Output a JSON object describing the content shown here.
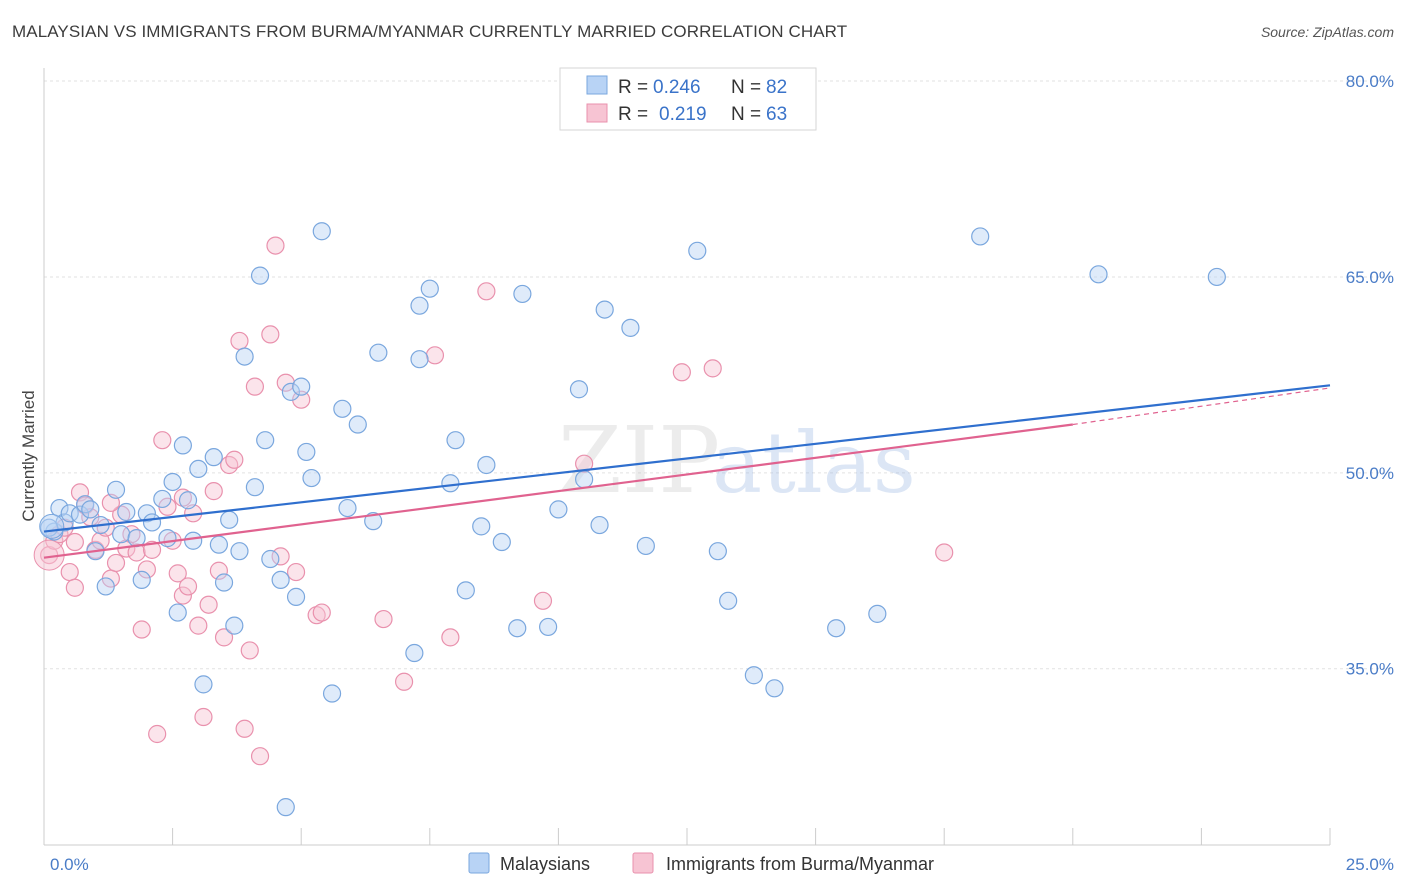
{
  "header": {
    "title": "MALAYSIAN VS IMMIGRANTS FROM BURMA/MYANMAR CURRENTLY MARRIED CORRELATION CHART",
    "source": "Source: ZipAtlas.com"
  },
  "watermark": {
    "zip": "ZIP",
    "atlas": "atlas"
  },
  "colors": {
    "blue_fill": "#b8d3f5",
    "blue_stroke": "#7aa7de",
    "blue_line": "#2f6fce",
    "pink_fill": "#f7c4d3",
    "pink_stroke": "#e991ad",
    "pink_line": "#e0628f",
    "tick_text": "#4a7cc7",
    "grid": "#e2e2e2"
  },
  "legend": {
    "rows": [
      {
        "r_label": "R =",
        "r_value": "0.246",
        "n_label": "N =",
        "n_value": "82"
      },
      {
        "r_label": "R =",
        "r_value": "0.219",
        "n_label": "N =",
        "n_value": "63"
      }
    ]
  },
  "bottom_legend": [
    "Malaysians",
    "Immigrants from Burma/Myanmar"
  ],
  "chart_data": {
    "type": "scatter",
    "title": "MALAYSIAN VS IMMIGRANTS FROM BURMA/MYANMAR CURRENTLY MARRIED CORRELATION CHART",
    "xlabel": "",
    "ylabel": "Currently Married",
    "xlim": [
      0,
      25
    ],
    "ylim": [
      21.5,
      81
    ],
    "y_ticks": [
      35,
      50,
      65,
      80
    ],
    "y_tick_labels": [
      "35.0%",
      "50.0%",
      "65.0%",
      "80.0%"
    ],
    "x_tick_labels": [
      "0.0%",
      "25.0%"
    ],
    "grid": true,
    "legend_position": "top-center",
    "series": [
      {
        "name": "Malaysians",
        "color": "#b8d3f5",
        "trend": {
          "x": [
            0,
            25
          ],
          "y": [
            45.5,
            56.7
          ]
        },
        "points": [
          [
            0.2,
            45.5
          ],
          [
            0.3,
            47.3
          ],
          [
            0.4,
            46.2
          ],
          [
            0.5,
            46.9
          ],
          [
            0.7,
            46.8
          ],
          [
            0.8,
            47.6
          ],
          [
            0.9,
            47.2
          ],
          [
            1.0,
            44.0
          ],
          [
            1.1,
            46.0
          ],
          [
            1.2,
            41.3
          ],
          [
            1.4,
            48.7
          ],
          [
            1.5,
            45.3
          ],
          [
            1.6,
            47.0
          ],
          [
            1.8,
            45.0
          ],
          [
            1.9,
            41.8
          ],
          [
            2.0,
            46.9
          ],
          [
            2.1,
            46.2
          ],
          [
            2.3,
            48.0
          ],
          [
            2.4,
            45.0
          ],
          [
            2.5,
            49.3
          ],
          [
            2.6,
            39.3
          ],
          [
            2.7,
            52.1
          ],
          [
            2.8,
            47.9
          ],
          [
            2.9,
            44.8
          ],
          [
            3.0,
            50.3
          ],
          [
            3.1,
            33.8
          ],
          [
            3.3,
            51.2
          ],
          [
            3.4,
            44.5
          ],
          [
            3.5,
            41.6
          ],
          [
            3.6,
            46.4
          ],
          [
            3.7,
            38.3
          ],
          [
            3.8,
            44.0
          ],
          [
            3.9,
            58.9
          ],
          [
            4.1,
            48.9
          ],
          [
            4.2,
            65.1
          ],
          [
            4.3,
            52.5
          ],
          [
            4.4,
            43.4
          ],
          [
            4.6,
            41.8
          ],
          [
            4.7,
            24.4
          ],
          [
            4.8,
            56.2
          ],
          [
            4.9,
            40.5
          ],
          [
            5.0,
            56.6
          ],
          [
            5.1,
            51.6
          ],
          [
            5.2,
            49.6
          ],
          [
            5.4,
            68.5
          ],
          [
            5.6,
            33.1
          ],
          [
            5.8,
            54.9
          ],
          [
            5.9,
            47.3
          ],
          [
            6.1,
            53.7
          ],
          [
            6.4,
            46.3
          ],
          [
            6.5,
            59.2
          ],
          [
            7.2,
            36.2
          ],
          [
            7.3,
            62.8
          ],
          [
            7.3,
            58.7
          ],
          [
            7.5,
            64.1
          ],
          [
            7.9,
            49.2
          ],
          [
            8.0,
            52.5
          ],
          [
            8.2,
            41.0
          ],
          [
            8.5,
            45.9
          ],
          [
            8.6,
            50.6
          ],
          [
            8.9,
            44.7
          ],
          [
            9.2,
            38.1
          ],
          [
            9.3,
            63.7
          ],
          [
            9.8,
            38.2
          ],
          [
            10.0,
            47.2
          ],
          [
            10.4,
            56.4
          ],
          [
            10.5,
            49.5
          ],
          [
            10.8,
            46.0
          ],
          [
            10.9,
            62.5
          ],
          [
            11.4,
            61.1
          ],
          [
            11.7,
            44.4
          ],
          [
            12.7,
            67.0
          ],
          [
            13.1,
            44.0
          ],
          [
            13.3,
            40.2
          ],
          [
            13.8,
            34.5
          ],
          [
            14.2,
            33.5
          ],
          [
            15.4,
            38.1
          ],
          [
            16.2,
            39.2
          ],
          [
            18.2,
            68.1
          ],
          [
            20.5,
            65.2
          ],
          [
            22.8,
            65.0
          ],
          [
            0.1,
            45.8
          ]
        ]
      },
      {
        "name": "Immigrants from Burma/Myanmar",
        "color": "#f7c4d3",
        "trend": {
          "x": [
            0,
            20
          ],
          "y": [
            43.5,
            53.7
          ]
        },
        "trend_dashed": {
          "x": [
            20,
            25
          ],
          "y": [
            53.7,
            56.5
          ]
        },
        "points": [
          [
            0.1,
            43.7
          ],
          [
            0.2,
            44.8
          ],
          [
            0.3,
            45.3
          ],
          [
            0.4,
            45.8
          ],
          [
            0.5,
            42.4
          ],
          [
            0.6,
            41.2
          ],
          [
            0.7,
            48.5
          ],
          [
            0.8,
            47.5
          ],
          [
            0.9,
            46.6
          ],
          [
            1.0,
            44.1
          ],
          [
            1.1,
            44.8
          ],
          [
            1.2,
            45.8
          ],
          [
            1.3,
            41.9
          ],
          [
            1.4,
            43.1
          ],
          [
            1.5,
            46.8
          ],
          [
            1.6,
            44.2
          ],
          [
            1.7,
            45.3
          ],
          [
            1.8,
            43.9
          ],
          [
            1.9,
            38.0
          ],
          [
            2.0,
            42.6
          ],
          [
            2.1,
            44.1
          ],
          [
            2.2,
            30.0
          ],
          [
            2.3,
            52.5
          ],
          [
            2.4,
            47.4
          ],
          [
            2.5,
            44.8
          ],
          [
            2.6,
            42.3
          ],
          [
            2.7,
            40.6
          ],
          [
            2.8,
            41.3
          ],
          [
            2.9,
            46.9
          ],
          [
            3.0,
            38.3
          ],
          [
            3.1,
            31.3
          ],
          [
            3.2,
            39.9
          ],
          [
            3.3,
            48.6
          ],
          [
            3.4,
            42.5
          ],
          [
            3.5,
            37.4
          ],
          [
            3.6,
            50.6
          ],
          [
            3.7,
            51.0
          ],
          [
            3.8,
            60.1
          ],
          [
            3.9,
            30.4
          ],
          [
            4.0,
            36.4
          ],
          [
            4.1,
            56.6
          ],
          [
            4.2,
            28.3
          ],
          [
            4.4,
            60.6
          ],
          [
            4.5,
            67.4
          ],
          [
            4.6,
            43.6
          ],
          [
            4.7,
            56.9
          ],
          [
            4.9,
            42.4
          ],
          [
            5.0,
            55.6
          ],
          [
            5.3,
            39.1
          ],
          [
            5.4,
            39.3
          ],
          [
            6.6,
            38.8
          ],
          [
            7.0,
            34.0
          ],
          [
            7.6,
            59.0
          ],
          [
            7.9,
            37.4
          ],
          [
            8.6,
            63.9
          ],
          [
            9.7,
            40.2
          ],
          [
            10.5,
            50.7
          ],
          [
            12.4,
            57.7
          ],
          [
            13.0,
            58.0
          ],
          [
            17.5,
            43.9
          ],
          [
            0.6,
            44.7
          ],
          [
            1.3,
            47.7
          ],
          [
            2.7,
            48.1
          ]
        ]
      }
    ]
  }
}
